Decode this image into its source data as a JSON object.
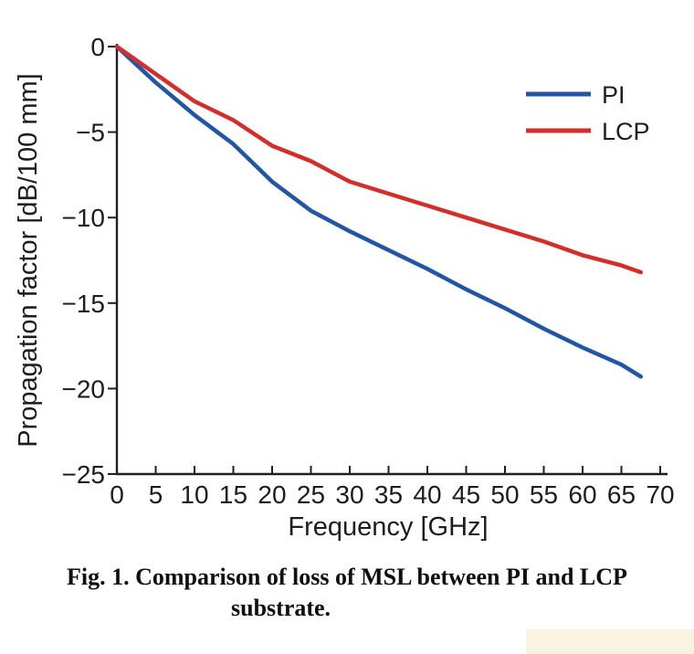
{
  "figure": {
    "caption_line1": "Fig. 1. Comparison of loss of MSL between PI and LCP",
    "caption_line2": "substrate."
  },
  "chart_data": {
    "type": "line",
    "title": "",
    "xlabel": "Frequency [GHz]",
    "ylabel": "Propagation factor [dB/100 mm]",
    "xlim": [
      0,
      70
    ],
    "ylim": [
      -25,
      0
    ],
    "x_ticks": [
      0,
      5,
      10,
      15,
      20,
      25,
      30,
      35,
      40,
      45,
      50,
      55,
      60,
      65,
      70
    ],
    "y_ticks": [
      0,
      -5,
      -10,
      -15,
      -20,
      -25
    ],
    "grid": false,
    "legend_position": "upper right",
    "axis_color": "#231f20",
    "x": [
      0,
      5,
      10,
      15,
      20,
      25,
      30,
      35,
      40,
      45,
      50,
      55,
      60,
      65,
      67.5
    ],
    "series": [
      {
        "name": "PI",
        "color": "#2056A5",
        "values": [
          0,
          -2.1,
          -4.0,
          -5.7,
          -7.9,
          -9.6,
          -10.8,
          -11.9,
          -13.0,
          -14.2,
          -15.3,
          -16.5,
          -17.6,
          -18.6,
          -19.3
        ]
      },
      {
        "name": "LCP",
        "color": "#D32F2A",
        "values": [
          0,
          -1.6,
          -3.2,
          -4.3,
          -5.8,
          -6.7,
          -7.9,
          -8.6,
          -9.3,
          -10.0,
          -10.7,
          -11.4,
          -12.2,
          -12.8,
          -13.2
        ]
      }
    ]
  }
}
